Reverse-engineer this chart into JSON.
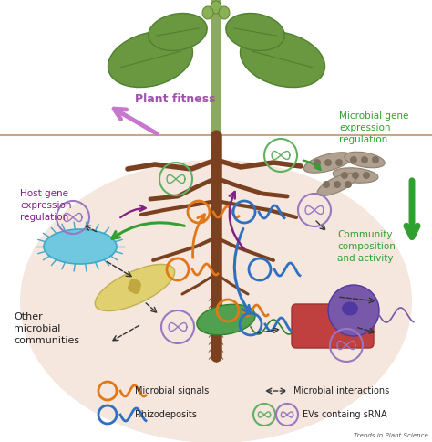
{
  "background_color": "#ffffff",
  "soil_color": "#f5e6de",
  "soil_line_color": "#c8a882",
  "watermark": "Trends in Plant Science",
  "labels": {
    "plant_fitness": "Plant fitness",
    "host_gene": "Host gene\nexpression\nregulation",
    "microbial_gene": "Microbial gene\nexpression\nregulation",
    "community": "Community\ncomposition\nand activity",
    "other_microbial": "Other\nmicrobial\ncommunities"
  },
  "legend": {
    "microbial_signals_text": "Microbial signals",
    "rhizodeposits_text": "Rhizodeposits",
    "microbial_interactions_text": "Microbial interactions",
    "evs_text": "EVs containg sRNA",
    "microbial_signals_color": "#e07818",
    "rhizodeposits_color": "#3070c0",
    "ev_green_color": "#60b060",
    "ev_purple_color": "#9878c0"
  },
  "colors": {
    "plant_fitness_arrow": "#c878cc",
    "plant_fitness_text": "#a050b0",
    "host_gene_text": "#802080",
    "host_gene_arrow": "#802080",
    "microbial_gene_text": "#30a030",
    "microbial_gene_arrow": "#30a030",
    "community_text": "#30a030",
    "other_microbial_text": "#222222",
    "orange_signal": "#e07818",
    "blue_deposit": "#3070c0",
    "cyan_bacteria": "#70c8e0",
    "yellow_bacteria": "#e0d070",
    "green_bacteria": "#50a050",
    "red_bacteria": "#c04040",
    "gray_fungus": "#b0a090",
    "purple_cell": "#7858a8",
    "brown_root": "#7a4020",
    "stem_color": "#80a050",
    "leaf_color": "#6a9840",
    "leaf_edge": "#508030"
  }
}
